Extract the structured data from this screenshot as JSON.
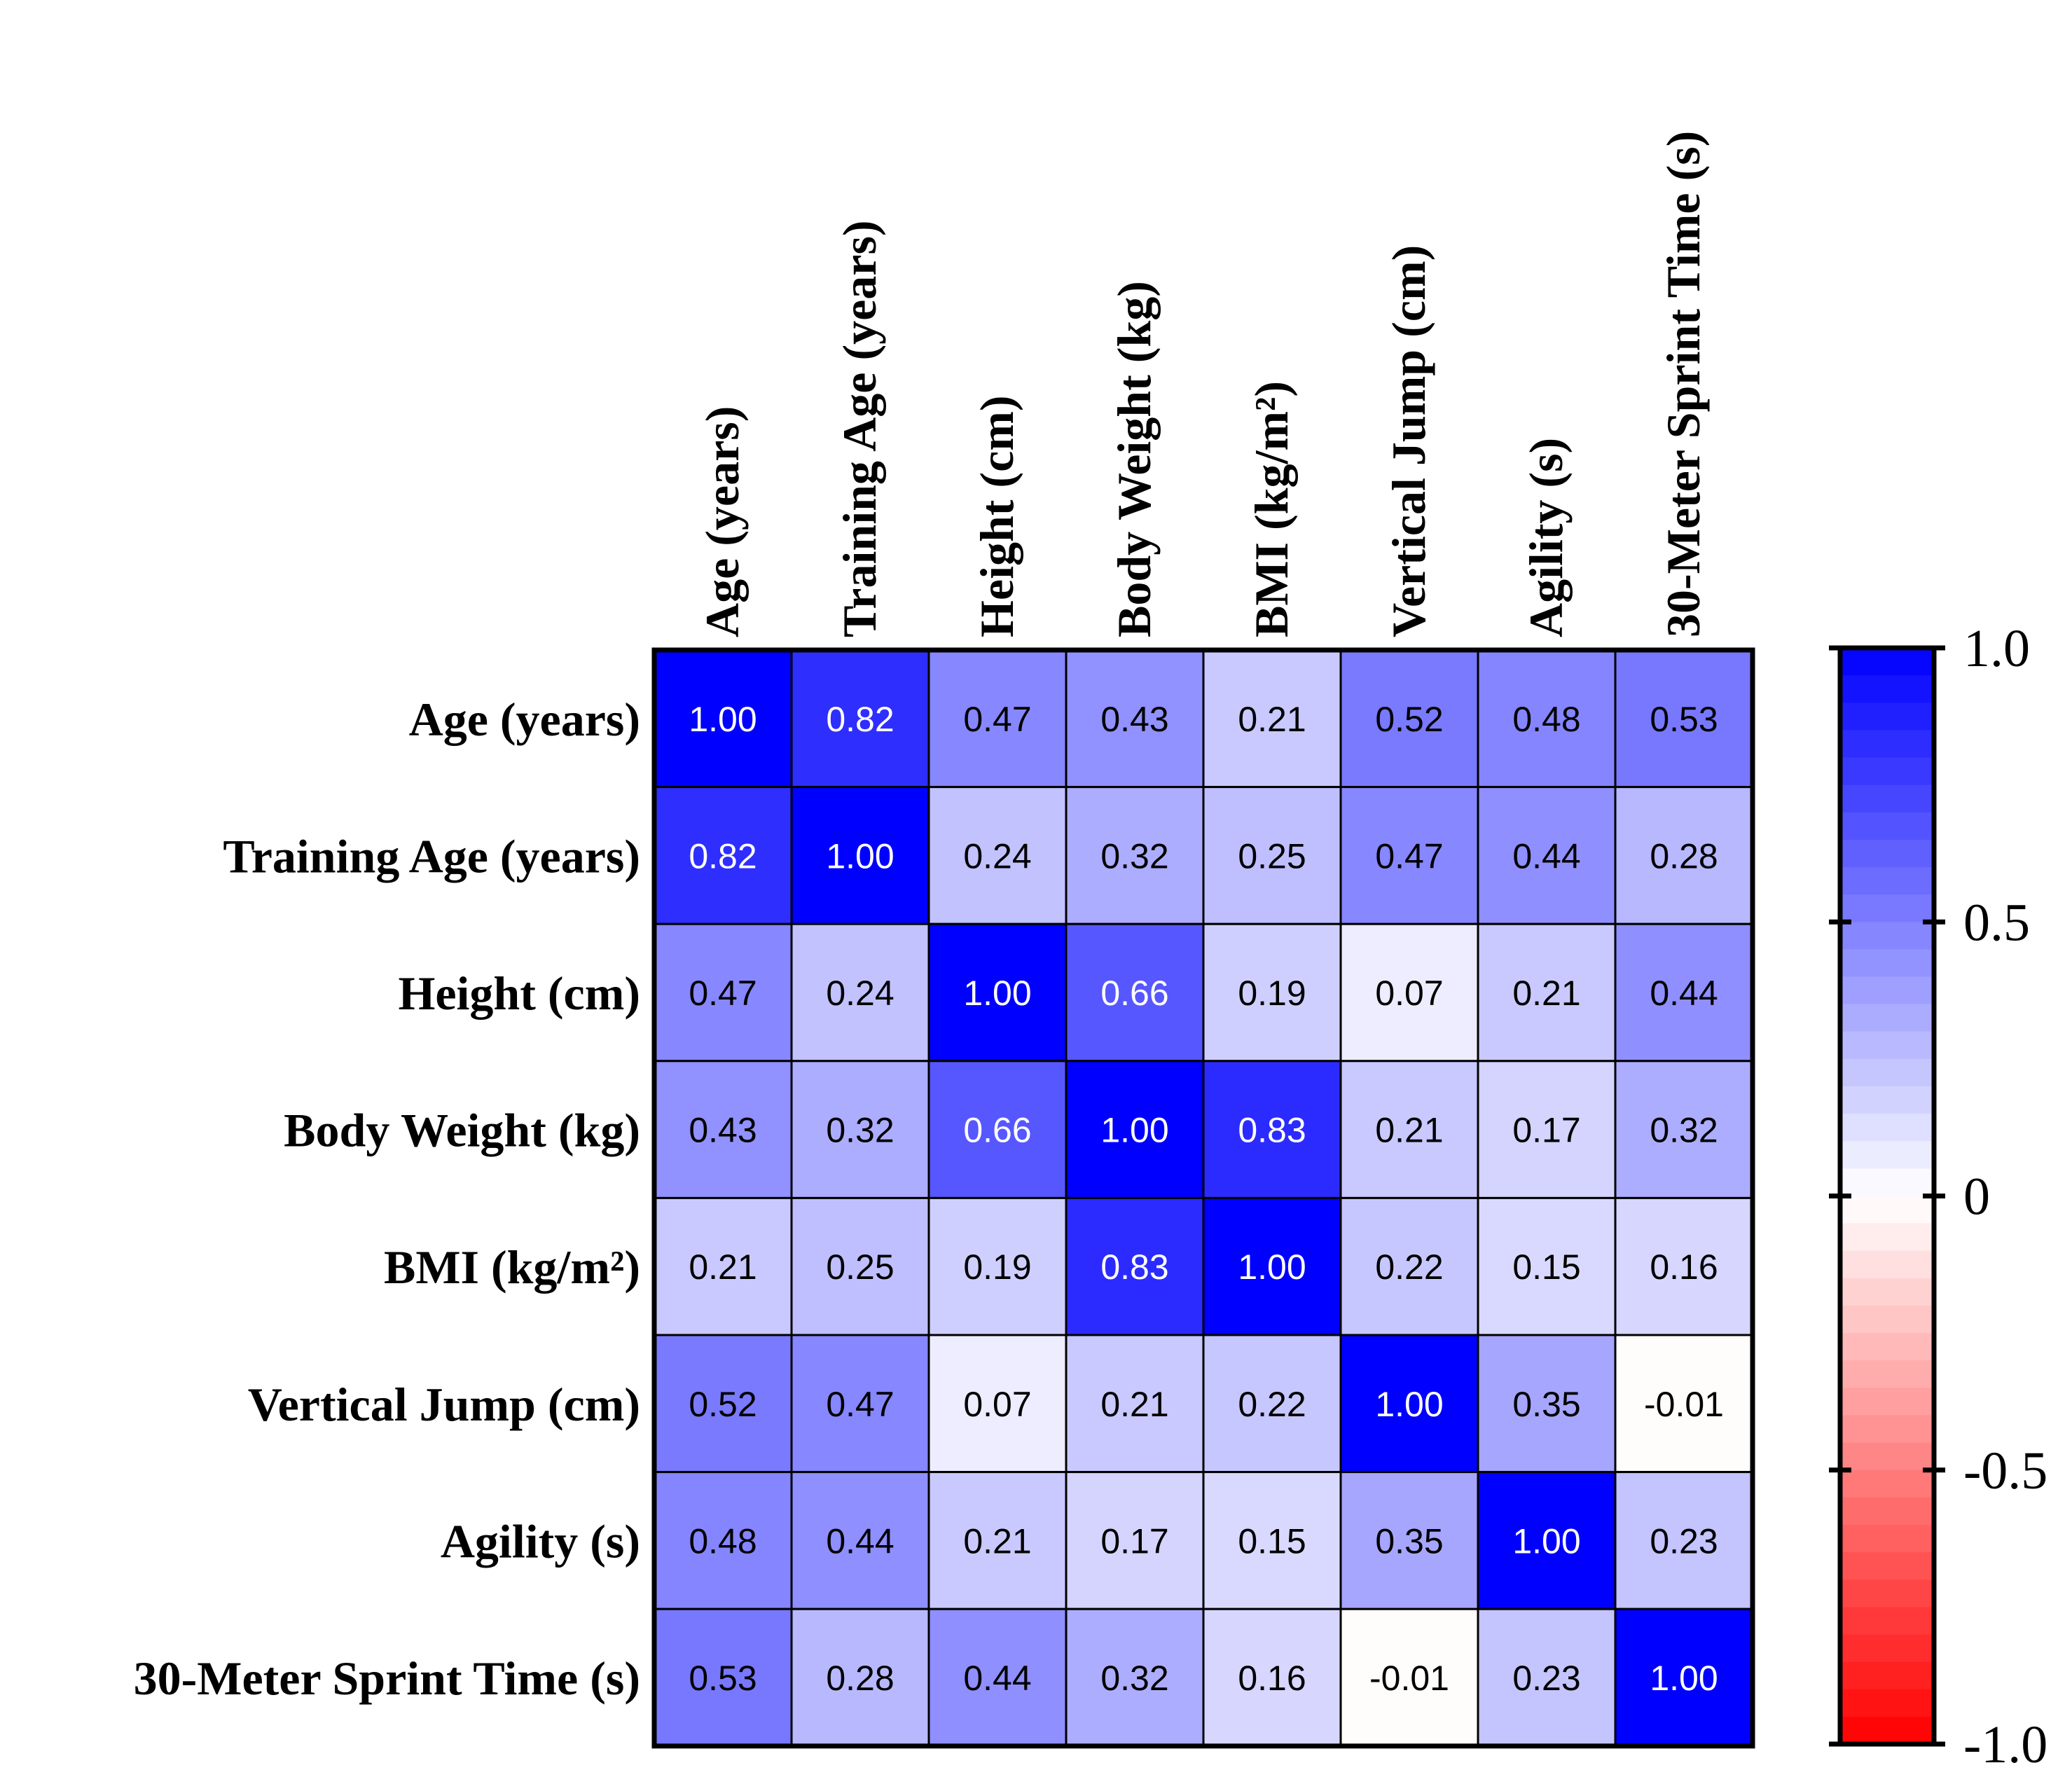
{
  "chart_data": {
    "type": "heatmap",
    "title": "",
    "xlabel": "",
    "ylabel": "",
    "row_labels": [
      "Age (years)",
      "Training Age (years)",
      "Height (cm)",
      "Body Weight (kg)",
      "BMI (kg/m²)",
      "Vertical Jump (cm)",
      "Agility (s)",
      "30-Meter Sprint Time (s)"
    ],
    "col_labels": [
      "Age (years)",
      "Training Age (years)",
      "Height (cm)",
      "Body Weight (kg)",
      "BMI (kg/m²)",
      "Vertical Jump (cm)",
      "Agility (s)",
      "30-Meter Sprint Time (s)"
    ],
    "values": [
      [
        1.0,
        0.82,
        0.47,
        0.43,
        0.21,
        0.52,
        0.48,
        0.53
      ],
      [
        0.82,
        1.0,
        0.24,
        0.32,
        0.25,
        0.47,
        0.44,
        0.28
      ],
      [
        0.47,
        0.24,
        1.0,
        0.66,
        0.19,
        0.07,
        0.21,
        0.44
      ],
      [
        0.43,
        0.32,
        0.66,
        1.0,
        0.83,
        0.21,
        0.17,
        0.32
      ],
      [
        0.21,
        0.25,
        0.19,
        0.83,
        1.0,
        0.22,
        0.15,
        0.16
      ],
      [
        0.52,
        0.47,
        0.07,
        0.21,
        0.22,
        1.0,
        0.35,
        -0.01
      ],
      [
        0.48,
        0.44,
        0.21,
        0.17,
        0.15,
        0.35,
        1.0,
        0.23
      ],
      [
        0.53,
        0.28,
        0.44,
        0.32,
        0.16,
        -0.01,
        0.23,
        1.0
      ]
    ],
    "value_labels": [
      [
        "1.00",
        "0.82",
        "0.47",
        "0.43",
        "0.21",
        "0.52",
        "0.48",
        "0.53"
      ],
      [
        "0.82",
        "1.00",
        "0.24",
        "0.32",
        "0.25",
        "0.47",
        "0.44",
        "0.28"
      ],
      [
        "0.47",
        "0.24",
        "1.00",
        "0.66",
        "0.19",
        "0.07",
        "0.21",
        "0.44"
      ],
      [
        "0.43",
        "0.32",
        "0.66",
        "1.00",
        "0.83",
        "0.21",
        "0.17",
        "0.32"
      ],
      [
        "0.21",
        "0.25",
        "0.19",
        "0.83",
        "1.00",
        "0.22",
        "0.15",
        "0.16"
      ],
      [
        "0.52",
        "0.47",
        "0.07",
        "0.21",
        "0.22",
        "1.00",
        "0.35",
        "-0.01"
      ],
      [
        "0.48",
        "0.44",
        "0.21",
        "0.17",
        "0.15",
        "0.35",
        "1.00",
        "0.23"
      ],
      [
        "0.53",
        "0.28",
        "0.44",
        "0.32",
        "0.16",
        "-0.01",
        "0.23",
        "1.00"
      ]
    ],
    "colorbar": {
      "range": [
        -1.0,
        1.0
      ],
      "steps": 40,
      "ticks": [
        1.0,
        0.5,
        0,
        -0.5,
        -1.0
      ],
      "tick_labels": [
        "1.0",
        "0.5",
        "0",
        "-0.5",
        "-1.0"
      ],
      "color_max": "#0000ff",
      "color_mid": "#ffffff",
      "color_min": "#ff0000"
    },
    "light_text_threshold": 0.6,
    "text_color_dark": "#000000",
    "text_color_light": "#ffffff",
    "grid": true,
    "legend_position": "right"
  }
}
